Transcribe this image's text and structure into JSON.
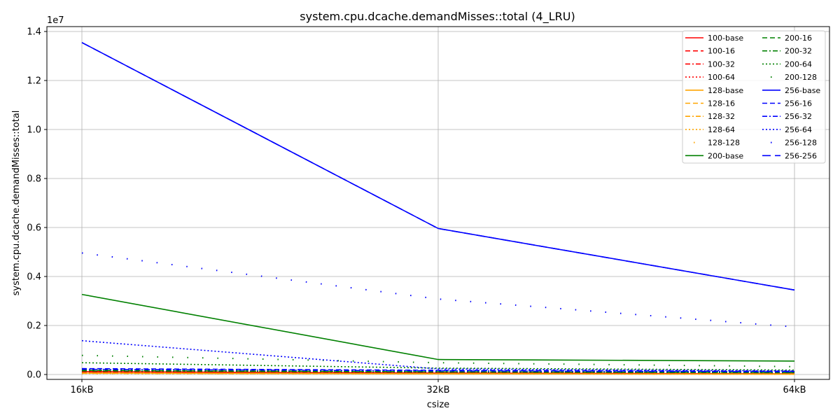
{
  "chart_data": {
    "type": "line",
    "title": "system.cpu.dcache.demandMisses::total (4_LRU)",
    "xlabel": "csize",
    "ylabel": "system.cpu.dcache.demandMisses::total",
    "y_multiplier_label": "1e7",
    "categories": [
      "16kB",
      "32kB",
      "64kB"
    ],
    "ylim": [
      -200000,
      14200000
    ],
    "yticks": [
      0,
      2000000,
      4000000,
      6000000,
      8000000,
      10000000,
      12000000,
      14000000
    ],
    "ytick_labels": [
      "0.0",
      "0.2",
      "0.4",
      "0.6",
      "0.8",
      "1.0",
      "1.2",
      "1.4"
    ],
    "grid": true,
    "legend_position": "top-right",
    "series": [
      {
        "name": "100-base",
        "color": "#ff0000",
        "dash": "solid",
        "values": [
          120000,
          60000,
          30000
        ]
      },
      {
        "name": "100-16",
        "color": "#ff0000",
        "dash": "dashed",
        "values": [
          110000,
          55000,
          28000
        ]
      },
      {
        "name": "100-32",
        "color": "#ff0000",
        "dash": "dashdot",
        "values": [
          100000,
          50000,
          26000
        ]
      },
      {
        "name": "100-64",
        "color": "#ff0000",
        "dash": "dotted",
        "values": [
          90000,
          45000,
          24000
        ]
      },
      {
        "name": "128-base",
        "color": "#ffa500",
        "dash": "solid",
        "values": [
          60000,
          30000,
          15000
        ]
      },
      {
        "name": "128-16",
        "color": "#ffa500",
        "dash": "dashed",
        "values": [
          55000,
          28000,
          14000
        ]
      },
      {
        "name": "128-32",
        "color": "#ffa500",
        "dash": "dashdot",
        "values": [
          50000,
          26000,
          13000
        ]
      },
      {
        "name": "128-64",
        "color": "#ffa500",
        "dash": "dotted",
        "values": [
          45000,
          24000,
          12000
        ]
      },
      {
        "name": "128-128",
        "color": "#ffa500",
        "dash": "sparse",
        "values": [
          40000,
          22000,
          11000
        ]
      },
      {
        "name": "200-base",
        "color": "#008000",
        "dash": "solid",
        "values": [
          3270000,
          610000,
          550000
        ]
      },
      {
        "name": "200-16",
        "color": "#008000",
        "dash": "dashed",
        "values": [
          170000,
          110000,
          80000
        ]
      },
      {
        "name": "200-32",
        "color": "#008000",
        "dash": "dashdot",
        "values": [
          150000,
          100000,
          70000
        ]
      },
      {
        "name": "200-64",
        "color": "#008000",
        "dash": "dotted",
        "values": [
          480000,
          260000,
          180000
        ]
      },
      {
        "name": "200-128",
        "color": "#008000",
        "dash": "sparse",
        "values": [
          780000,
          480000,
          320000
        ]
      },
      {
        "name": "256-base",
        "color": "#0000ff",
        "dash": "solid",
        "values": [
          13550000,
          5960000,
          3450000
        ]
      },
      {
        "name": "256-16",
        "color": "#0000ff",
        "dash": "dashed",
        "values": [
          240000,
          170000,
          130000
        ]
      },
      {
        "name": "256-32",
        "color": "#0000ff",
        "dash": "dashdot",
        "values": [
          210000,
          150000,
          110000
        ]
      },
      {
        "name": "256-64",
        "color": "#0000ff",
        "dash": "dotted",
        "values": [
          1380000,
          230000,
          150000
        ]
      },
      {
        "name": "256-128",
        "color": "#0000ff",
        "dash": "sparse",
        "values": [
          4960000,
          3080000,
          1940000
        ]
      },
      {
        "name": "256-256",
        "color": "#0000ff",
        "dash": "longdash",
        "values": [
          13550000,
          5960000,
          3450000
        ]
      }
    ]
  }
}
